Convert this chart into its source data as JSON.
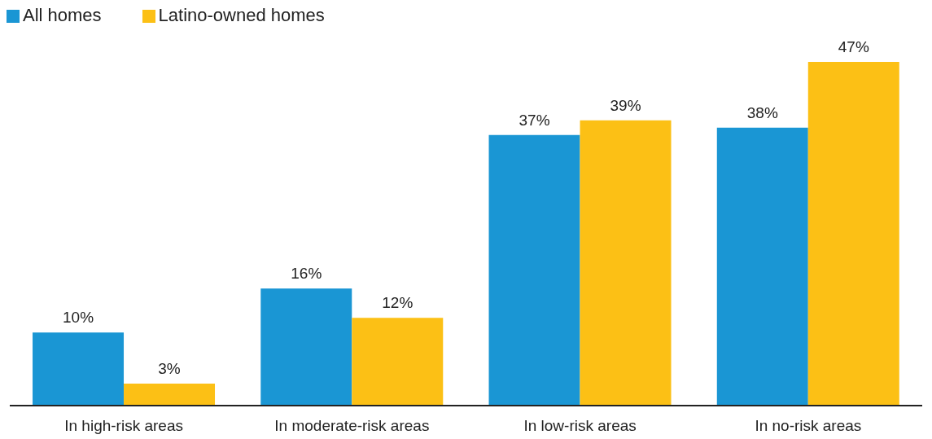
{
  "chart_data": {
    "type": "bar",
    "categories": [
      "In high-risk areas",
      "In moderate-risk areas",
      "In low-risk areas",
      "In no-risk areas"
    ],
    "series": [
      {
        "name": "All homes",
        "color": "#1a96d4",
        "values": [
          10,
          16,
          37,
          38
        ],
        "value_labels": [
          "10%",
          "16%",
          "37%",
          "38%"
        ]
      },
      {
        "name": "Latino-owned homes",
        "color": "#fcc015",
        "values": [
          3,
          12,
          39,
          47
        ],
        "value_labels": [
          "3%",
          "12%",
          "39%",
          "47%"
        ]
      }
    ],
    "legend": "top left",
    "grid": false
  }
}
